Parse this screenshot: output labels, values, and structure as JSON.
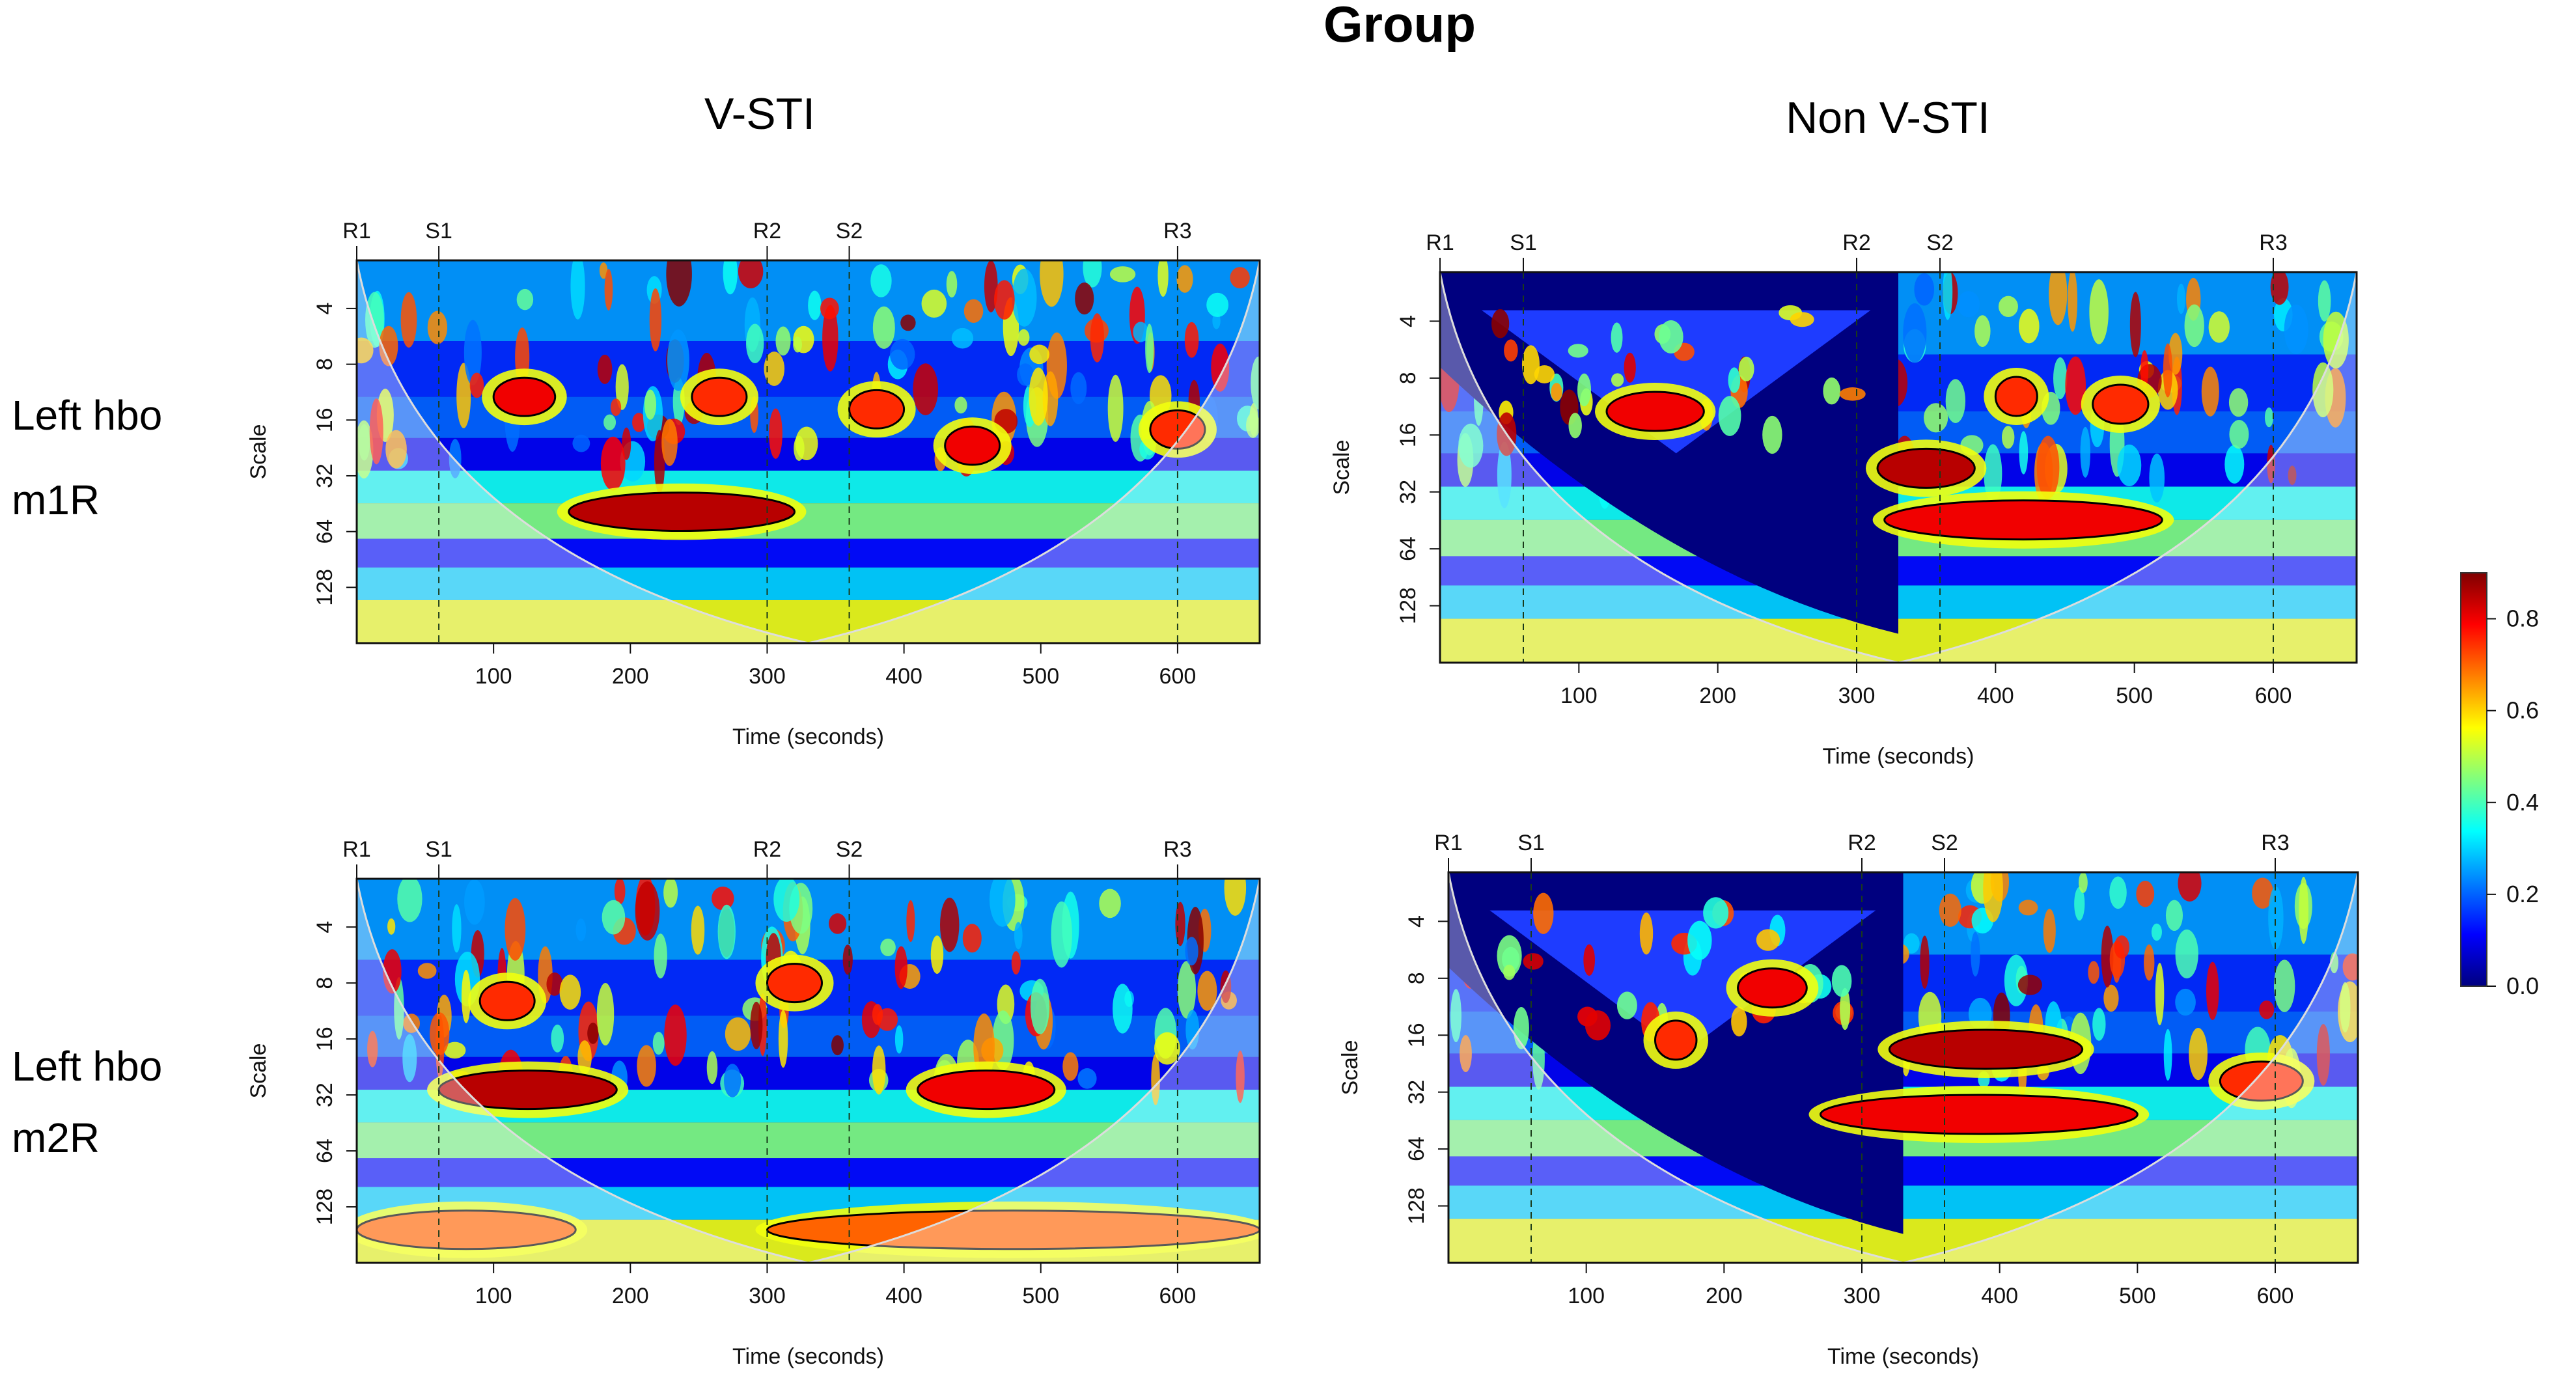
{
  "figure": {
    "title": "Group",
    "column_titles": [
      "V-STI",
      "Non V-STI"
    ],
    "row_labels": [
      [
        "Left hbo",
        "m1R"
      ],
      [
        "Left hbo",
        "m2R"
      ]
    ]
  },
  "chart_data": [
    {
      "type": "heatmap",
      "title": "Left hbo m1R — V-STI",
      "xlabel": "Time (seconds)",
      "ylabel": "Scale",
      "x_ticks": [
        100,
        200,
        300,
        400,
        500,
        600
      ],
      "xlim": [
        0,
        660
      ],
      "y_ticks": [
        4,
        8,
        16,
        32,
        64,
        128
      ],
      "y_scale": "log2",
      "event_markers": [
        {
          "label": "R1",
          "t": 0
        },
        {
          "label": "S1",
          "t": 60
        },
        {
          "label": "R2",
          "t": 300
        },
        {
          "label": "S2",
          "t": 360
        },
        {
          "label": "R3",
          "t": 600
        }
      ],
      "cone_of_influence": "symmetric",
      "masked_region": "none",
      "high_coherence_regions": [
        {
          "t_start": 155,
          "t_end": 320,
          "scale": 50,
          "coherence": 0.85
        },
        {
          "t_start": 100,
          "t_end": 145,
          "scale": 12,
          "coherence": 0.8
        },
        {
          "t_start": 360,
          "t_end": 400,
          "scale": 14,
          "coherence": 0.75
        },
        {
          "t_start": 430,
          "t_end": 470,
          "scale": 22,
          "coherence": 0.8
        },
        {
          "t_start": 580,
          "t_end": 620,
          "scale": 18,
          "coherence": 0.75
        },
        {
          "t_start": 245,
          "t_end": 285,
          "scale": 12,
          "coherence": 0.75
        }
      ]
    },
    {
      "type": "heatmap",
      "title": "Left hbo m1R — Non V-STI",
      "xlabel": "Time (seconds)",
      "ylabel": "Scale",
      "x_ticks": [
        100,
        200,
        300,
        400,
        500,
        600
      ],
      "xlim": [
        0,
        660
      ],
      "y_ticks": [
        4,
        8,
        16,
        32,
        64,
        128
      ],
      "y_scale": "log2",
      "event_markers": [
        {
          "label": "R1",
          "t": 0
        },
        {
          "label": "S1",
          "t": 60
        },
        {
          "label": "R2",
          "t": 300
        },
        {
          "label": "S2",
          "t": 360
        },
        {
          "label": "R3",
          "t": 600
        }
      ],
      "cone_of_influence": "split",
      "masked_region": "split",
      "high_coherence_regions": [
        {
          "t_start": 120,
          "t_end": 190,
          "scale": 12,
          "coherence": 0.8
        },
        {
          "t_start": 315,
          "t_end": 385,
          "scale": 24,
          "coherence": 0.85
        },
        {
          "t_start": 320,
          "t_end": 520,
          "scale": 45,
          "coherence": 0.8
        },
        {
          "t_start": 400,
          "t_end": 430,
          "scale": 10,
          "coherence": 0.75
        },
        {
          "t_start": 470,
          "t_end": 510,
          "scale": 11,
          "coherence": 0.75
        }
      ]
    },
    {
      "type": "heatmap",
      "title": "Left hbo m2R — V-STI",
      "xlabel": "Time (seconds)",
      "ylabel": "Scale",
      "x_ticks": [
        100,
        200,
        300,
        400,
        500,
        600
      ],
      "xlim": [
        0,
        660
      ],
      "y_ticks": [
        4,
        8,
        16,
        32,
        64,
        128
      ],
      "y_scale": "log2",
      "event_markers": [
        {
          "label": "R1",
          "t": 0
        },
        {
          "label": "S1",
          "t": 60
        },
        {
          "label": "R2",
          "t": 300
        },
        {
          "label": "S2",
          "t": 360
        },
        {
          "label": "R3",
          "t": 600
        }
      ],
      "cone_of_influence": "symmetric",
      "masked_region": "none",
      "high_coherence_regions": [
        {
          "t_start": 60,
          "t_end": 190,
          "scale": 30,
          "coherence": 0.85
        },
        {
          "t_start": 410,
          "t_end": 510,
          "scale": 30,
          "coherence": 0.8
        },
        {
          "t_start": 300,
          "t_end": 340,
          "scale": 8,
          "coherence": 0.75
        },
        {
          "t_start": 90,
          "t_end": 130,
          "scale": 10,
          "coherence": 0.75
        },
        {
          "t_start": 0,
          "t_end": 160,
          "scale": 170,
          "coherence": 0.7
        },
        {
          "t_start": 300,
          "t_end": 660,
          "scale": 170,
          "coherence": 0.7
        }
      ]
    },
    {
      "type": "heatmap",
      "title": "Left hbo m2R — Non V-STI",
      "xlabel": "Time (seconds)",
      "ylabel": "Scale",
      "x_ticks": [
        100,
        200,
        300,
        400,
        500,
        600
      ],
      "xlim": [
        0,
        660
      ],
      "y_ticks": [
        4,
        8,
        16,
        32,
        64,
        128
      ],
      "y_scale": "log2",
      "event_markers": [
        {
          "label": "R1",
          "t": 0
        },
        {
          "label": "S1",
          "t": 60
        },
        {
          "label": "R2",
          "t": 300
        },
        {
          "label": "S2",
          "t": 360
        },
        {
          "label": "R3",
          "t": 600
        }
      ],
      "cone_of_influence": "split",
      "masked_region": "split",
      "high_coherence_regions": [
        {
          "t_start": 320,
          "t_end": 460,
          "scale": 19,
          "coherence": 0.85
        },
        {
          "t_start": 270,
          "t_end": 500,
          "scale": 42,
          "coherence": 0.8
        },
        {
          "t_start": 560,
          "t_end": 620,
          "scale": 28,
          "coherence": 0.75
        },
        {
          "t_start": 210,
          "t_end": 260,
          "scale": 9,
          "coherence": 0.8
        },
        {
          "t_start": 150,
          "t_end": 180,
          "scale": 17,
          "coherence": 0.75
        }
      ]
    }
  ],
  "colorbar": {
    "ticks": [
      "0.0",
      "0.2",
      "0.4",
      "0.6",
      "0.8"
    ],
    "range": [
      0,
      0.9
    ],
    "colors": [
      "#00007F",
      "#0000FF",
      "#007FFF",
      "#00FFFF",
      "#7FFF7F",
      "#FFFF00",
      "#FF7F00",
      "#FF0000",
      "#7F0000"
    ]
  }
}
